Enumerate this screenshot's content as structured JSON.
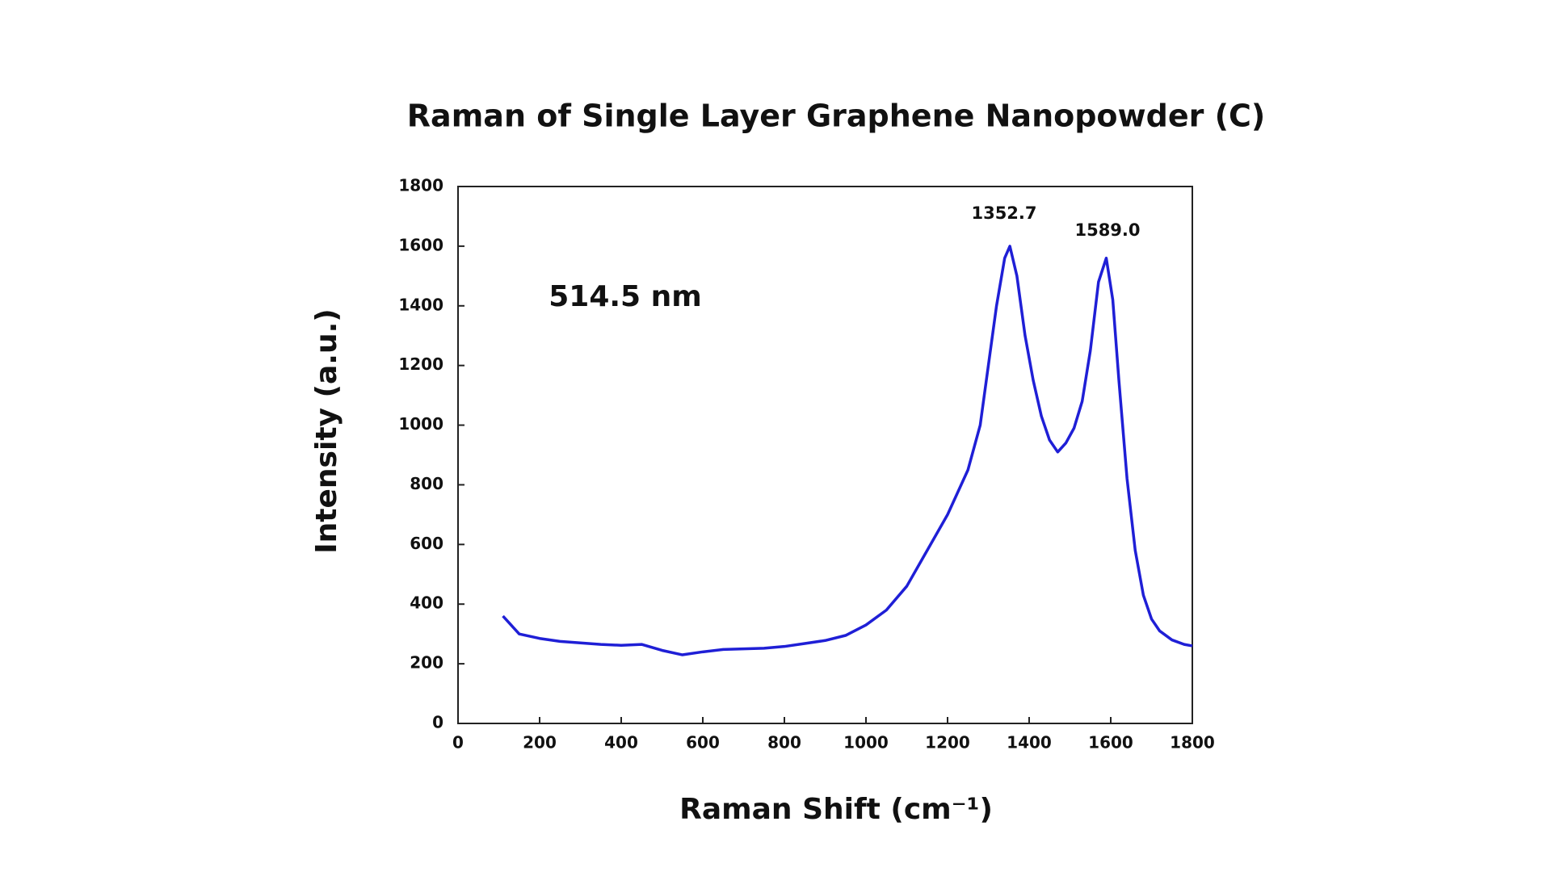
{
  "chart_data": {
    "type": "line",
    "title": "Raman of Single Layer Graphene Nanopowder (C)",
    "x_label": "Raman Shift (cm⁻¹)",
    "y_label": "Intensity (a.u.)",
    "annotations": [
      "1352.7",
      "1589.0",
      "514.5 nm"
    ],
    "color": "#1f1fd6",
    "x": [
      110,
      150,
      200,
      250,
      300,
      350,
      400,
      450,
      500,
      550,
      600,
      650,
      700,
      750,
      800,
      850,
      900,
      950,
      1000,
      1050,
      1100,
      1150,
      1200,
      1250,
      1280,
      1300,
      1320,
      1340,
      1352.7,
      1370,
      1390,
      1410,
      1430,
      1450,
      1470,
      1490,
      1510,
      1530,
      1550,
      1570,
      1589,
      1605,
      1620,
      1640,
      1660,
      1680,
      1700,
      1720,
      1750,
      1780,
      1800
    ],
    "values": [
      360,
      300,
      285,
      275,
      270,
      265,
      262,
      265,
      245,
      230,
      240,
      248,
      250,
      252,
      258,
      268,
      278,
      295,
      330,
      380,
      460,
      580,
      700,
      850,
      1000,
      1200,
      1400,
      1560,
      1600,
      1500,
      1300,
      1150,
      1030,
      950,
      910,
      940,
      990,
      1080,
      1250,
      1480,
      1560,
      1420,
      1150,
      820,
      580,
      430,
      350,
      310,
      280,
      265,
      260
    ],
    "xlim": [
      0,
      1800
    ],
    "xticks": [
      0,
      200,
      400,
      600,
      800,
      1000,
      1200,
      1400,
      1600,
      1800
    ],
    "ylim": [
      0,
      1800
    ],
    "yticks": [
      0,
      200,
      400,
      600,
      800,
      1000,
      1200,
      1400,
      1600,
      1800
    ]
  }
}
